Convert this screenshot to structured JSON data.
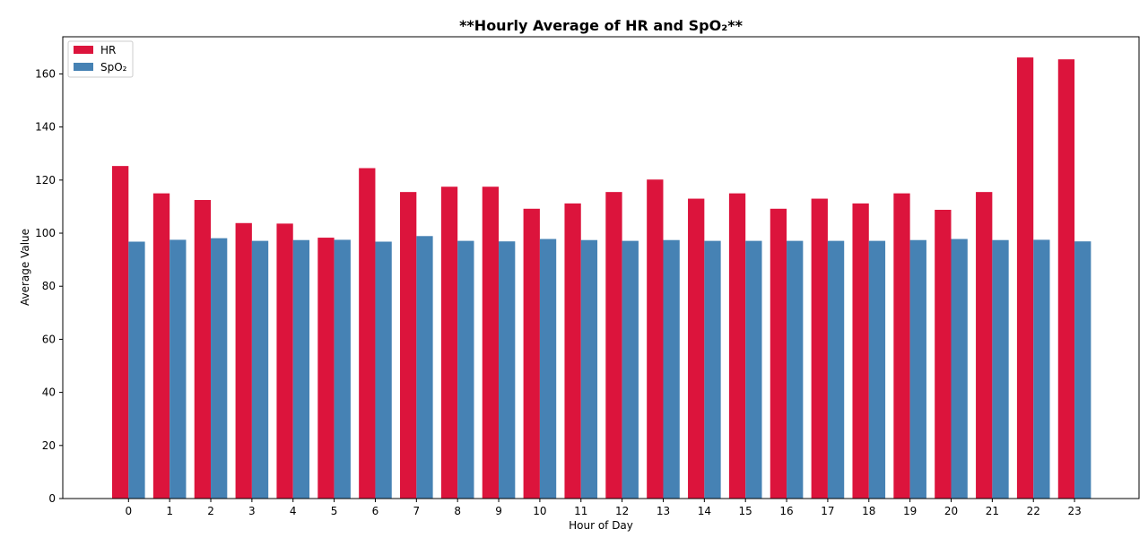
{
  "chart_data": {
    "type": "bar",
    "title": "**Hourly Average of HR and SpO₂**",
    "xlabel": "Hour of Day",
    "ylabel": "Average Value",
    "ylim": [
      0,
      174
    ],
    "yticks": [
      0,
      20,
      40,
      60,
      80,
      100,
      120,
      140,
      160
    ],
    "categories": [
      "0",
      "1",
      "2",
      "3",
      "4",
      "5",
      "6",
      "7",
      "8",
      "9",
      "10",
      "11",
      "12",
      "13",
      "14",
      "15",
      "16",
      "17",
      "18",
      "19",
      "20",
      "21",
      "22",
      "23"
    ],
    "grid": false,
    "legend_position": "top-left",
    "series": [
      {
        "name": "HR",
        "color": "#dc143c",
        "values": [
          125.3,
          115.0,
          112.5,
          103.8,
          103.6,
          98.3,
          124.5,
          115.5,
          117.5,
          117.5,
          109.2,
          111.2,
          115.5,
          120.2,
          113.0,
          115.0,
          109.2,
          113.0,
          111.2,
          115.0,
          108.8,
          115.5,
          166.2,
          165.5
        ]
      },
      {
        "name": "SpO₂",
        "color": "#4682b4",
        "values": [
          96.8,
          97.5,
          98.1,
          97.1,
          97.4,
          97.5,
          96.8,
          98.9,
          97.1,
          96.9,
          97.8,
          97.4,
          97.1,
          97.4,
          97.1,
          97.1,
          97.1,
          97.1,
          97.1,
          97.4,
          97.8,
          97.4,
          97.5,
          96.9
        ]
      }
    ]
  }
}
